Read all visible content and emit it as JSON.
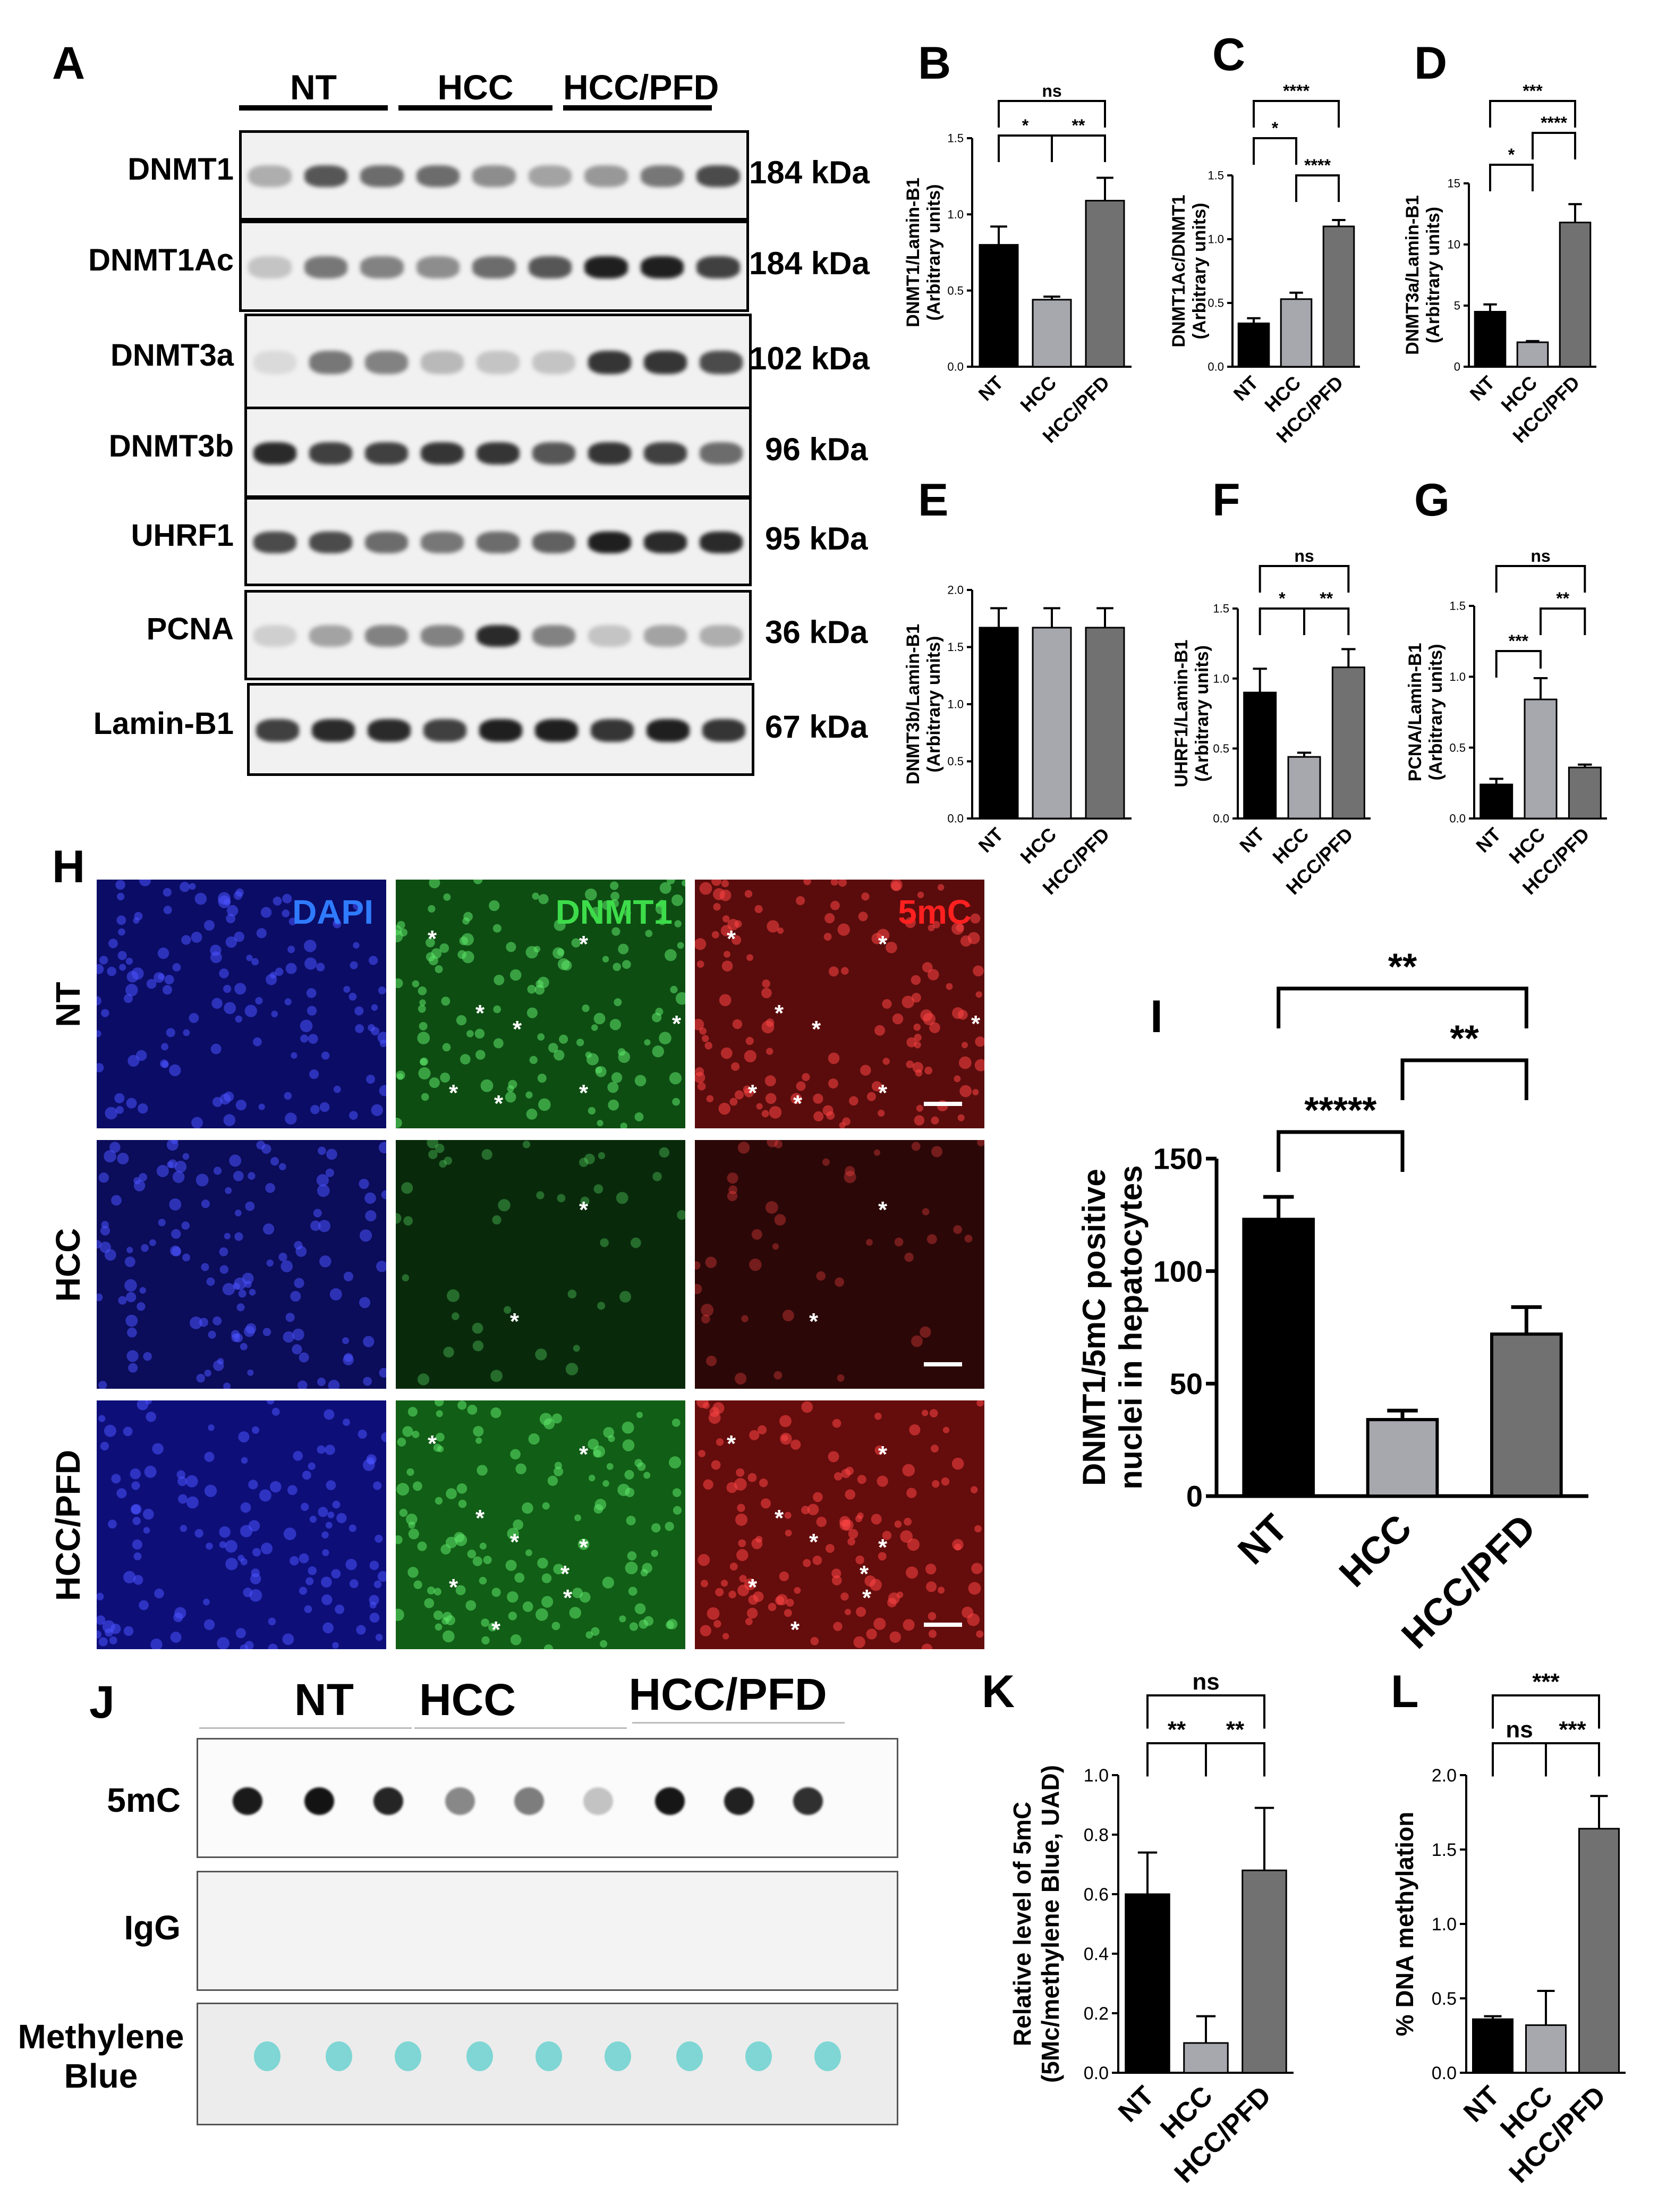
{
  "panel_letters": {
    "A": "A",
    "B": "B",
    "C": "C",
    "D": "D",
    "E": "E",
    "F": "F",
    "G": "G",
    "H": "H",
    "I": "I",
    "J": "J",
    "K": "K",
    "L": "L"
  },
  "panel_A": {
    "groups": [
      "NT",
      "HCC",
      "HCC/PFD"
    ],
    "blots": [
      {
        "name": "DNMT1",
        "kda": "184 kDa"
      },
      {
        "name": "DNMT1Ac",
        "kda": "184 kDa"
      },
      {
        "name": "DNMT3a",
        "kda": "102 kDa"
      },
      {
        "name": "DNMT3b",
        "kda": "96 kDa"
      },
      {
        "name": "UHRF1",
        "kda": "95 kDa"
      },
      {
        "name": "PCNA",
        "kda": "36 kDa"
      },
      {
        "name": "Lamin-B1",
        "kda": "67 kDa"
      }
    ]
  },
  "panel_H": {
    "channels": [
      {
        "name": "DAPI",
        "color": "#2f7bff"
      },
      {
        "name": "DNMT1",
        "color": "#3ddc4a"
      },
      {
        "name": "5mC",
        "color": "#ff2020"
      }
    ],
    "rows": [
      "NT",
      "HCC",
      "HCC/PFD"
    ],
    "star": "*"
  },
  "panel_J": {
    "groups": [
      "NT",
      "HCC",
      "HCC/PFD"
    ],
    "rows": [
      "5mC",
      "IgG",
      "Methylene Blue"
    ],
    "methylene_lines": [
      "Methylene",
      "Blue"
    ],
    "dot_intensity_5mC": [
      0.95,
      0.98,
      0.9,
      0.45,
      0.5,
      0.18,
      0.97,
      0.92,
      0.85
    ]
  },
  "chart_data": [
    {
      "panel": "B",
      "type": "bar",
      "categories": [
        "NT",
        "HCC",
        "HCC/PFD"
      ],
      "values": [
        0.8,
        0.44,
        1.09
      ],
      "errors": [
        0.12,
        0.02,
        0.15
      ],
      "ylabel": [
        "DNMT1/Lamin-B1",
        "(Arbitrary units)"
      ],
      "ylim": [
        0,
        1.5
      ],
      "yticks": [
        "0.0",
        "0.5",
        "1.0",
        "1.5"
      ],
      "colors": [
        "#000000",
        "#a7a7ae",
        "#717171"
      ],
      "significance": [
        {
          "from": 0,
          "to": 2,
          "label": "ns",
          "level": 0
        },
        {
          "from": 0,
          "to": 1,
          "label": "*",
          "level": 1
        },
        {
          "from": 1,
          "to": 2,
          "label": "**",
          "level": 1
        }
      ]
    },
    {
      "panel": "C",
      "type": "bar",
      "categories": [
        "NT",
        "HCC",
        "HCC/PFD"
      ],
      "values": [
        0.34,
        0.53,
        1.1
      ],
      "errors": [
        0.04,
        0.05,
        0.05
      ],
      "ylabel": [
        "DNMT1Ac/DNMT1",
        "(Arbitrary units)"
      ],
      "ylim": [
        0,
        1.5
      ],
      "yticks": [
        "0.0",
        "0.5",
        "1.0",
        "1.5"
      ],
      "colors": [
        "#000000",
        "#a7a7ae",
        "#717171"
      ],
      "significance": [
        {
          "from": 0,
          "to": 2,
          "label": "****",
          "level": 0
        },
        {
          "from": 0,
          "to": 1,
          "label": "*",
          "level": 1
        },
        {
          "from": 1,
          "to": 2,
          "label": "****",
          "level": 2
        }
      ]
    },
    {
      "panel": "D",
      "type": "bar",
      "categories": [
        "NT",
        "HCC",
        "HCC/PFD"
      ],
      "values": [
        4.5,
        2.0,
        11.8
      ],
      "errors": [
        0.6,
        0.1,
        1.5
      ],
      "ylabel": [
        "DNMT3a/Lamin-B1",
        "(Arbitrary units)"
      ],
      "ylim": [
        0,
        15
      ],
      "yticks": [
        "0",
        "5",
        "10",
        "15"
      ],
      "colors": [
        "#000000",
        "#a7a7ae",
        "#717171"
      ],
      "significance": [
        {
          "from": 0,
          "to": 2,
          "label": "***",
          "level": 0
        },
        {
          "from": 1,
          "to": 2,
          "label": "****",
          "level": 1
        },
        {
          "from": 0,
          "to": 1,
          "label": "*",
          "level": 2
        }
      ]
    },
    {
      "panel": "E",
      "type": "bar",
      "categories": [
        "NT",
        "HCC",
        "HCC/PFD"
      ],
      "values": [
        1.67,
        1.67,
        1.67
      ],
      "errors": [
        0.17,
        0.17,
        0.17
      ],
      "ylabel": [
        "DNMT3b/Lamin-B1",
        "(Arbitrary units)"
      ],
      "ylim": [
        0,
        2.0
      ],
      "yticks": [
        "0.0",
        "0.5",
        "1.0",
        "1.5",
        "2.0"
      ],
      "colors": [
        "#000000",
        "#a7a7ae",
        "#717171"
      ],
      "significance": []
    },
    {
      "panel": "F",
      "type": "bar",
      "categories": [
        "NT",
        "HCC",
        "HCC/PFD"
      ],
      "values": [
        0.9,
        0.44,
        1.08
      ],
      "errors": [
        0.17,
        0.03,
        0.13
      ],
      "ylabel": [
        "UHRF1/Lamin-B1",
        "(Arbitrary units)"
      ],
      "ylim": [
        0,
        1.5
      ],
      "yticks": [
        "0.0",
        "0.5",
        "1.0",
        "1.5"
      ],
      "colors": [
        "#000000",
        "#a7a7ae",
        "#717171"
      ],
      "significance": [
        {
          "from": 0,
          "to": 2,
          "label": "ns",
          "level": 0
        },
        {
          "from": 0,
          "to": 1,
          "label": "*",
          "level": 1
        },
        {
          "from": 1,
          "to": 2,
          "label": "**",
          "level": 1
        }
      ]
    },
    {
      "panel": "G",
      "type": "bar",
      "categories": [
        "NT",
        "HCC",
        "HCC/PFD"
      ],
      "values": [
        0.24,
        0.84,
        0.36
      ],
      "errors": [
        0.04,
        0.15,
        0.02
      ],
      "ylabel": [
        "PCNA/Lamin-B1",
        "(Arbitrary units)"
      ],
      "ylim": [
        0,
        1.5
      ],
      "yticks": [
        "0.0",
        "0.5",
        "1.0",
        "1.5"
      ],
      "colors": [
        "#000000",
        "#a7a7ae",
        "#717171"
      ],
      "significance": [
        {
          "from": 0,
          "to": 2,
          "label": "ns",
          "level": 0
        },
        {
          "from": 1,
          "to": 2,
          "label": "**",
          "level": 1
        },
        {
          "from": 0,
          "to": 1,
          "label": "***",
          "level": 2
        }
      ]
    },
    {
      "panel": "I",
      "type": "bar",
      "categories": [
        "NT",
        "HCC",
        "HCC/PFD"
      ],
      "values": [
        123,
        34,
        72
      ],
      "errors": [
        10,
        4,
        12
      ],
      "ylabel": [
        "DNMT1/5mC positive",
        "nuclei in hepatocytes"
      ],
      "ylim": [
        0,
        150
      ],
      "yticks": [
        "0",
        "50",
        "100",
        "150"
      ],
      "colors": [
        "#000000",
        "#a7a7ae",
        "#717171"
      ],
      "significance": [
        {
          "from": 0,
          "to": 2,
          "label": "**",
          "level": 0
        },
        {
          "from": 1,
          "to": 2,
          "label": "**",
          "level": 1
        },
        {
          "from": 0,
          "to": 1,
          "label": "*****",
          "level": 2
        }
      ]
    },
    {
      "panel": "K",
      "type": "bar",
      "categories": [
        "NT",
        "HCC",
        "HCC/PFD"
      ],
      "values": [
        0.6,
        0.1,
        0.68
      ],
      "errors": [
        0.14,
        0.09,
        0.21
      ],
      "ylabel": [
        "Relative level of 5mC",
        "(5Mc/methylene Blue, UAD)"
      ],
      "ylim": [
        0,
        1.0
      ],
      "yticks": [
        "0.0",
        "0.2",
        "0.4",
        "0.6",
        "0.8",
        "1.0"
      ],
      "colors": [
        "#000000",
        "#a7a7ae",
        "#717171"
      ],
      "significance": [
        {
          "from": 0,
          "to": 2,
          "label": "ns",
          "level": 0
        },
        {
          "from": 0,
          "to": 1,
          "label": "**",
          "level": 1
        },
        {
          "from": 1,
          "to": 2,
          "label": "**",
          "level": 1
        }
      ]
    },
    {
      "panel": "L",
      "type": "bar",
      "categories": [
        "NT",
        "HCC",
        "HCC/PFD"
      ],
      "values": [
        0.36,
        0.32,
        1.64
      ],
      "errors": [
        0.02,
        0.23,
        0.22
      ],
      "ylabel": [
        "% DNA methylation"
      ],
      "ylim": [
        0,
        2.0
      ],
      "yticks": [
        "0.0",
        "0.5",
        "1.0",
        "1.5",
        "2.0"
      ],
      "colors": [
        "#000000",
        "#a7a7ae",
        "#717171"
      ],
      "significance": [
        {
          "from": 0,
          "to": 2,
          "label": "***",
          "level": 0
        },
        {
          "from": 0,
          "to": 1,
          "label": "ns",
          "level": 1
        },
        {
          "from": 1,
          "to": 2,
          "label": "***",
          "level": 1
        }
      ]
    }
  ]
}
